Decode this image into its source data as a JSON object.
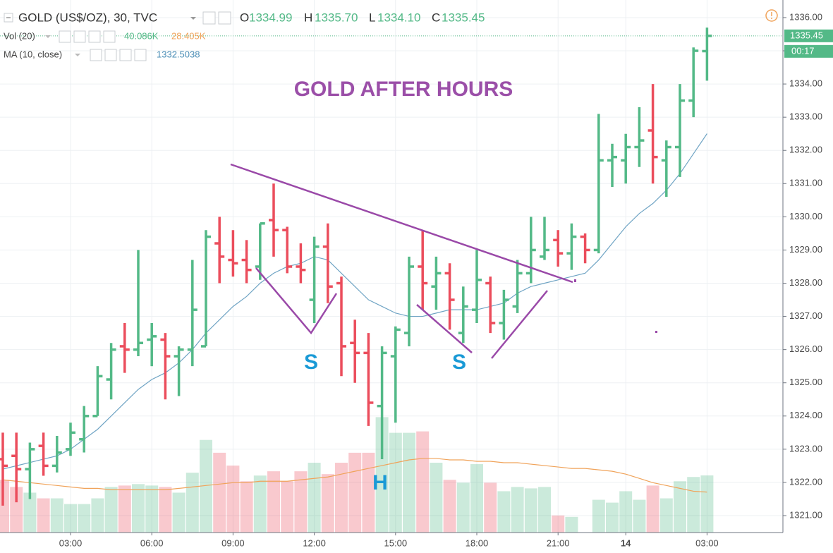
{
  "chart_data": {
    "type": "ohlc",
    "title": "GOLD AFTER HOURS",
    "header": {
      "symbol": "GOLD (US$/OZ), 30, TVC",
      "open_label": "O",
      "open": "1334.99",
      "high_label": "H",
      "high": "1335.70",
      "low_label": "L",
      "low": "1334.10",
      "close_label": "C",
      "close": "1335.45"
    },
    "categories": [
      null,
      null,
      null,
      null,
      null,
      "03:00",
      null,
      null,
      null,
      null,
      null,
      "06:00",
      null,
      null,
      null,
      null,
      null,
      "09:00",
      null,
      null,
      null,
      null,
      null,
      "12:00",
      null,
      null,
      null,
      null,
      null,
      "15:00",
      null,
      null,
      null,
      null,
      null,
      "18:00",
      null,
      null,
      null,
      null,
      null,
      "21:00",
      null,
      null,
      null,
      null,
      "14",
      null,
      null,
      null,
      null,
      null,
      "03:00"
    ],
    "open": [
      1322.7,
      1322.8,
      1322.4,
      1323.1,
      1322.5,
      1323.0,
      1323.3,
      1324.0,
      1325.1,
      1326.1,
      1326.0,
      1326.3,
      1326.3,
      1325.8,
      1326.0,
      1326.1,
      1329.2,
      1328.7,
      1328.7,
      1328.5,
      1329.9,
      1329.6,
      1328.5,
      1327.5,
      1329.1,
      1328.0,
      1326.2,
      1325.9,
      1324.3,
      1325.8,
      1326.5,
      1328.5,
      1327.9,
      1328.3,
      1326.5,
      1327.2,
      1328.0,
      1326.8,
      1327.3,
      1328.3,
      1328.8,
      1329.3,
      1328.9,
      1329.4,
      1329.0,
      1331.7,
      1331.7,
      1332.1,
      1332.6,
      1331.7,
      1332.1,
      1333.5,
      1334.99
    ],
    "high": [
      1323.5,
      1323.5,
      1323.2,
      1323.5,
      1323.4,
      1323.8,
      1324.3,
      1325.5,
      1326.2,
      1326.8,
      1329.0,
      1326.8,
      1326.5,
      1326.1,
      1328.7,
      1329.6,
      1330.0,
      1329.6,
      1329.3,
      1329.8,
      1331.0,
      1329.7,
      1329.2,
      1329.4,
      1329.8,
      1328.2,
      1326.9,
      1326.5,
      1326.1,
      1326.7,
      1328.8,
      1329.6,
      1328.8,
      1328.6,
      1327.9,
      1329.0,
      1328.2,
      1327.8,
      1328.7,
      1330.0,
      1330.0,
      1329.6,
      1329.8,
      1329.5,
      1333.1,
      1332.2,
      1332.5,
      1333.3,
      1334.0,
      1332.3,
      1334.0,
      1335.1,
      1335.7
    ],
    "low": [
      1321.3,
      1321.4,
      1321.5,
      1322.2,
      1322.3,
      1322.8,
      1322.9,
      1324.0,
      1324.5,
      1325.3,
      1325.8,
      1325.5,
      1324.5,
      1324.6,
      1325.5,
      1326.1,
      1328.0,
      1328.2,
      1328.0,
      1328.1,
      1328.8,
      1328.3,
      1328.0,
      1326.8,
      1327.4,
      1325.2,
      1325.0,
      1323.7,
      1322.7,
      1323.8,
      1326.1,
      1327.2,
      1327.2,
      1326.6,
      1326.2,
      1326.8,
      1326.5,
      1326.3,
      1327.1,
      1328.0,
      1328.7,
      1328.5,
      1328.4,
      1328.6,
      1328.9,
      1330.9,
      1331.0,
      1331.5,
      1331.0,
      1330.6,
      1331.2,
      1333.0,
      1334.1
    ],
    "close": [
      1322.5,
      1322.4,
      1323.0,
      1322.5,
      1322.9,
      1323.5,
      1324.0,
      1325.2,
      1326.0,
      1326.0,
      1326.2,
      1326.4,
      1325.8,
      1326.0,
      1327.2,
      1329.4,
      1328.8,
      1328.6,
      1328.4,
      1329.8,
      1329.6,
      1328.5,
      1328.4,
      1329.1,
      1327.9,
      1326.1,
      1325.9,
      1324.4,
      1325.9,
      1326.6,
      1328.5,
      1328.0,
      1328.3,
      1327.5,
      1327.3,
      1328.1,
      1326.8,
      1327.5,
      1328.3,
      1329.0,
      1329.0,
      1328.9,
      1329.4,
      1329.0,
      1331.7,
      1331.8,
      1332.1,
      1332.3,
      1331.8,
      1332.1,
      1333.5,
      1335.0,
      1335.45
    ],
    "up_color": "#53b987",
    "down_color": "#eb4d5c",
    "ma": {
      "label": "MA (10, close)",
      "value_label": "1332.5038",
      "color": "#6fa4c4",
      "values": [
        1322.4,
        1322.5,
        1322.6,
        1322.7,
        1322.8,
        1323.0,
        1323.3,
        1323.6,
        1324.0,
        1324.4,
        1324.8,
        1325.1,
        1325.3,
        1325.6,
        1326.0,
        1326.5,
        1326.9,
        1327.3,
        1327.6,
        1328.0,
        1328.3,
        1328.5,
        1328.6,
        1328.8,
        1328.7,
        1328.3,
        1327.9,
        1327.5,
        1327.3,
        1327.1,
        1327.0,
        1327.0,
        1327.1,
        1327.2,
        1327.2,
        1327.2,
        1327.3,
        1327.4,
        1327.7,
        1327.9,
        1328.0,
        1328.1,
        1328.2,
        1328.3,
        1328.7,
        1329.2,
        1329.7,
        1330.1,
        1330.4,
        1330.8,
        1331.3,
        1331.9,
        1332.5038
      ]
    },
    "volume": {
      "label": "Vol (20)",
      "value_label": "40.086K",
      "ma_label": "28.405K",
      "ma_color": "#f0a35a",
      "values": [
        37,
        32,
        28,
        24,
        24,
        20,
        20,
        24,
        32,
        33,
        34,
        33,
        32,
        28,
        42,
        65,
        56,
        47,
        36,
        40,
        43,
        36,
        43,
        49,
        41,
        49,
        56,
        56,
        81,
        70,
        70,
        71,
        49,
        37,
        35,
        48,
        35,
        29,
        32,
        31,
        32,
        12,
        11,
        0,
        23,
        21,
        29,
        23,
        33,
        24,
        36,
        39,
        40.086
      ],
      "ma_values": [
        37,
        36,
        35,
        34,
        33,
        32,
        31,
        31,
        30,
        30,
        30,
        30,
        30,
        31,
        32,
        33,
        34,
        35,
        35,
        36,
        36,
        36,
        37,
        38,
        39,
        41,
        43,
        45,
        47,
        49,
        51,
        52,
        52,
        51,
        51,
        50,
        50,
        49,
        49,
        48,
        47,
        46,
        45,
        45,
        44,
        43,
        41,
        38,
        35,
        33,
        31,
        29,
        28.405
      ]
    },
    "ylim": [
      1320.49,
      1336.53
    ],
    "yticks": [
      {
        "value": 1321,
        "label": "1321.00"
      },
      {
        "value": 1322,
        "label": "1322.00"
      },
      {
        "value": 1323,
        "label": "1323.00"
      },
      {
        "value": 1324,
        "label": "1324.00"
      },
      {
        "value": 1325,
        "label": "1325.00"
      },
      {
        "value": 1326,
        "label": "1326.00"
      },
      {
        "value": 1327,
        "label": "1327.00"
      },
      {
        "value": 1328,
        "label": "1328.00"
      },
      {
        "value": 1329,
        "label": "1329.00"
      },
      {
        "value": 1330,
        "label": "1330.00"
      },
      {
        "value": 1331,
        "label": "1331.00"
      },
      {
        "value": 1332,
        "label": "1332.00"
      },
      {
        "value": 1333,
        "label": "1333.00"
      },
      {
        "value": 1334,
        "label": "1334.00"
      },
      {
        "value": 1335,
        "label": "1335.00"
      },
      {
        "value": 1336,
        "label": "1336.00"
      }
    ],
    "grid": true,
    "last_price_label": "1335.45",
    "countdown": "00:17",
    "annotations": [
      {
        "text": "S"
      },
      {
        "text": "S"
      },
      {
        "text": "H"
      }
    ]
  }
}
